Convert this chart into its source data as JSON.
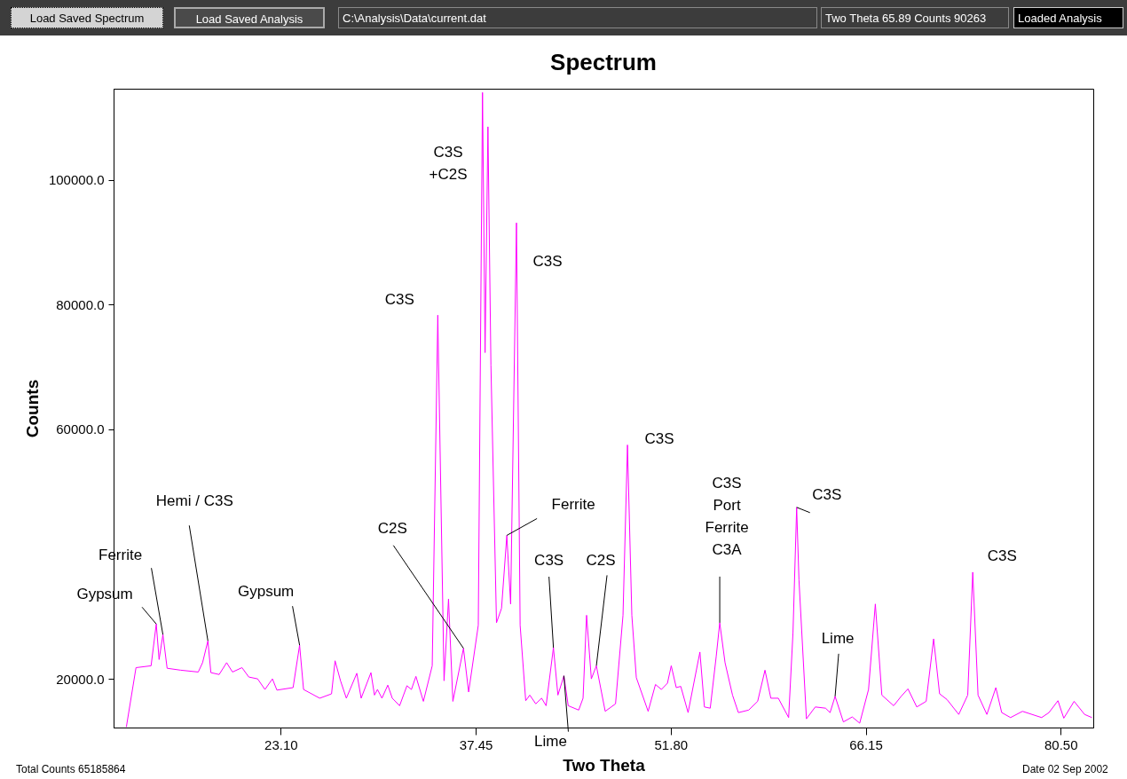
{
  "chart_data": {
    "type": "line",
    "title": "Spectrum",
    "xlabel": "Two Theta",
    "ylabel": "Counts",
    "color": "#ff00ff",
    "xlim": [
      10.8,
      82.9
    ],
    "ylim": [
      12200,
      114600
    ],
    "xticks": [
      {
        "value": 23.1,
        "label": "23.10"
      },
      {
        "value": 37.45,
        "label": "37.45"
      },
      {
        "value": 51.8,
        "label": "51.80"
      },
      {
        "value": 66.15,
        "label": "66.15"
      },
      {
        "value": 80.5,
        "label": "80.50"
      }
    ],
    "yticks": [
      {
        "value": 20000,
        "label": "20000.0"
      },
      {
        "value": 60000,
        "label": "60000.0"
      },
      {
        "value": 80000,
        "label": "80000.0"
      },
      {
        "value": 100000,
        "label": "100000.0"
      }
    ],
    "x": [
      11.74,
      12.45,
      13.56,
      13.94,
      14.15,
      14.43,
      14.74,
      15.72,
      17.03,
      17.35,
      17.74,
      17.96,
      18.57,
      19.12,
      19.55,
      20.25,
      20.75,
      21.4,
      21.94,
      22.49,
      22.82,
      24.01,
      24.49,
      24.78,
      25.97,
      26.84,
      27.1,
      27.5,
      27.93,
      28.7,
      29.02,
      29.74,
      30.0,
      30.22,
      30.55,
      30.98,
      31.31,
      31.85,
      32.39,
      32.72,
      33.05,
      33.6,
      34.25,
      34.66,
      35.12,
      35.45,
      35.77,
      36.55,
      36.93,
      37.64,
      37.95,
      38.14,
      38.35,
      38.57,
      38.98,
      39.35,
      39.74,
      40.02,
      40.45,
      40.72,
      41.13,
      41.43,
      41.87,
      42.3,
      42.63,
      43.17,
      43.5,
      43.94,
      44.26,
      45.03,
      45.35,
      45.61,
      45.96,
      46.33,
      46.98,
      47.74,
      48.29,
      48.62,
      48.94,
      49.27,
      50.14,
      50.68,
      51.12,
      51.56,
      51.84,
      52.21,
      52.54,
      53.08,
      53.95,
      54.28,
      54.71,
      55.15,
      55.41,
      55.8,
      56.35,
      56.78,
      57.54,
      58.2,
      58.74,
      59.17,
      59.72,
      60.48,
      60.8,
      61.07,
      61.24,
      61.79,
      62.44,
      63.2,
      63.53,
      63.9,
      64.51,
      65.16,
      65.71,
      66.36,
      66.86,
      67.34,
      68.21,
      68.76,
      69.26,
      69.91,
      70.6,
      71.15,
      71.59,
      72.13,
      73.0,
      73.66,
      74.03,
      74.42,
      75.07,
      75.73,
      76.16,
      76.81,
      77.69,
      79.1,
      79.64,
      80.3,
      80.73,
      81.49,
      82.26,
      82.8
    ],
    "values": [
      12300,
      21800,
      22100,
      28800,
      23100,
      27100,
      21700,
      21400,
      21100,
      22600,
      26100,
      21000,
      20700,
      22600,
      21100,
      21800,
      20300,
      20000,
      18300,
      20000,
      18200,
      18600,
      25400,
      18300,
      16900,
      17600,
      22900,
      19700,
      16900,
      20900,
      16900,
      21000,
      17400,
      18300,
      16900,
      19000,
      16900,
      15700,
      18900,
      18300,
      20400,
      16400,
      22100,
      78300,
      19700,
      32800,
      16400,
      24900,
      17900,
      28600,
      114000,
      72300,
      108500,
      70300,
      29000,
      31300,
      43000,
      32000,
      93100,
      28600,
      16500,
      17400,
      16000,
      16900,
      15700,
      25000,
      17400,
      20500,
      15700,
      15000,
      16900,
      30200,
      20000,
      22100,
      14800,
      16000,
      30200,
      57500,
      30200,
      20200,
      14800,
      19100,
      18300,
      19300,
      22100,
      18600,
      18800,
      14600,
      24300,
      15500,
      15300,
      23600,
      29000,
      22600,
      17400,
      14600,
      15000,
      16400,
      21400,
      16900,
      16900,
      13800,
      27400,
      47500,
      35900,
      13600,
      15500,
      15300,
      14600,
      17200,
      13100,
      13900,
      12900,
      18300,
      32000,
      17400,
      15700,
      17200,
      18400,
      15500,
      16400,
      26400,
      17600,
      16700,
      14300,
      17400,
      37100,
      17400,
      14300,
      18600,
      14600,
      13800,
      14800,
      13800,
      14600,
      16500,
      13700,
      16400,
      14300,
      13800
    ],
    "annotations": [
      "Load Saved Spectrum",
      "Load Saved Analysis",
      "C:\\Analysis\\Data\\current.dat",
      "Two Theta 65.89  Counts 90263",
      "Loaded Analysis",
      "Total Counts 65185864",
      "Date 02 Sep 2002",
      "C3S\n+C2S",
      {
        "text": "Gypsum",
        "x": 13.94,
        "y": 28800
      },
      {
        "text": "Ferrite",
        "x": 14.43,
        "y": 27100
      },
      {
        "text": "Hemi / C3S",
        "x": 17.74,
        "y": 26100
      },
      {
        "text": "Gypsum",
        "x": 24.49,
        "y": 25400
      },
      {
        "text": "C2S",
        "x": 36.55,
        "y": 24900
      },
      {
        "text": "C3S",
        "x": 34.66,
        "y": 78300
      },
      {
        "text": "C3S",
        "x": 40.45,
        "y": 93100
      },
      {
        "text": "Ferrite",
        "x": 39.74,
        "y": 43000
      },
      {
        "text": "C3S",
        "x": 43.17,
        "y": 25000
      },
      {
        "text": "C2S",
        "x": 46.33,
        "y": 22100
      },
      {
        "text": "Lime",
        "x": 43.94,
        "y": 20500
      },
      {
        "text": "C3S",
        "x": 48.62,
        "y": 57500
      },
      {
        "text": "C3S\nPort\nFerrite\nC3A",
        "x": 55.41,
        "y": 29000
      },
      {
        "text": "C3S",
        "x": 61.07,
        "y": 47500
      },
      {
        "text": "Lime",
        "x": 63.9,
        "y": 17200
      },
      {
        "text": "C3S",
        "x": 74.03,
        "y": 37100
      }
    ]
  }
}
